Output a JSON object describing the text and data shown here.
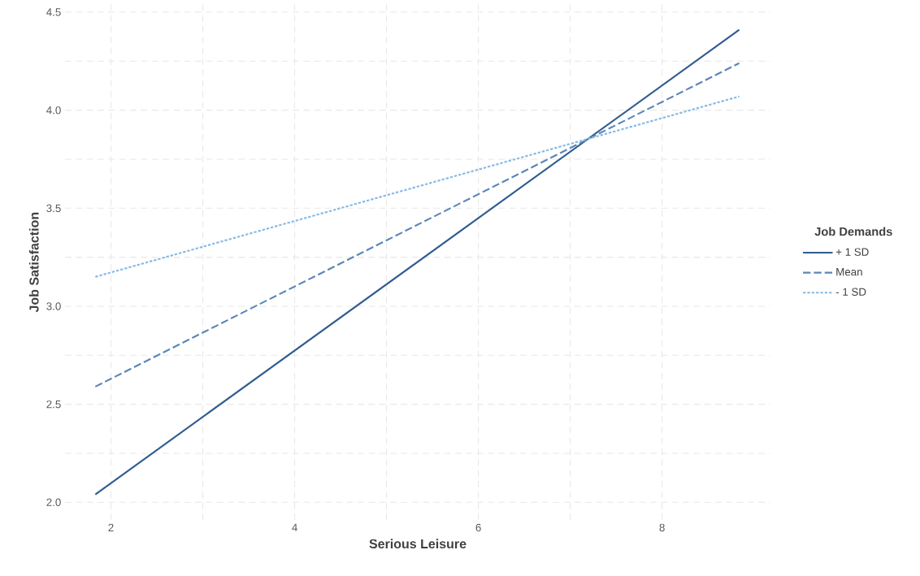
{
  "chart_data": {
    "type": "line",
    "xlabel": "Serious Leisure",
    "ylabel": "Job Satisfaction",
    "legend_title": "Job Demands",
    "xlim": [
      1.5,
      9.18
    ],
    "ylim": [
      1.91,
      4.54
    ],
    "xticks": [
      2,
      4,
      6,
      8
    ],
    "yticks": [
      {
        "value": 2,
        "label": "2.0"
      },
      2.5,
      {
        "value": 3,
        "label": "3.0"
      },
      3.5,
      {
        "value": 4,
        "label": "4.0"
      },
      4.5
    ],
    "x": [
      1.83,
      8.84
    ],
    "grid": true,
    "legend": "right",
    "marker": "none",
    "series": [
      {
        "name": "+ 1 SD",
        "color": "#2f5b8f",
        "line_style": "solid",
        "values": [
          2.04,
          4.41
        ]
      },
      {
        "name": "Mean",
        "color": "#5b86b8",
        "line_style": "dashed",
        "values": [
          2.59,
          4.24
        ]
      },
      {
        "name": "- 1 SD",
        "color": "#86b9e6",
        "line_style": "dotted",
        "values": [
          3.15,
          4.07
        ]
      }
    ]
  }
}
